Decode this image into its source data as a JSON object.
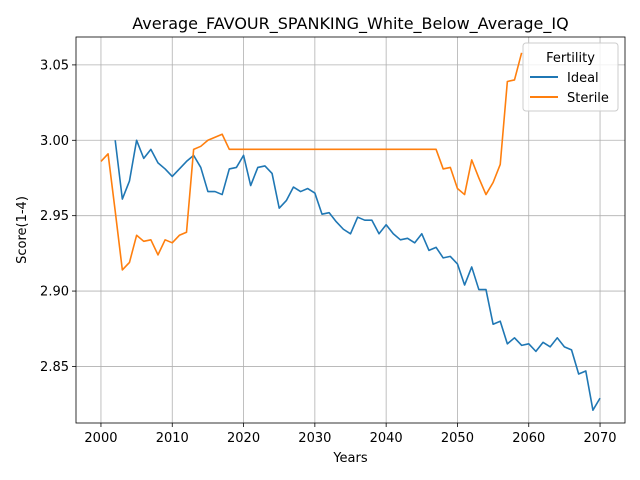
{
  "chart_data": {
    "type": "line",
    "title": "Average_FAVOUR_SPANKING_White_Below_Average_IQ",
    "xlabel": "Years",
    "ylabel": "Score(1-4)",
    "xlim": [
      1996.5,
      2073.5
    ],
    "ylim": [
      2.8125,
      3.0685
    ],
    "xticks": [
      2000,
      2010,
      2020,
      2030,
      2040,
      2050,
      2060,
      2070
    ],
    "yticks": [
      2.85,
      2.9,
      2.95,
      3.0,
      3.05
    ],
    "ytick_labels": [
      "2.85",
      "2.90",
      "2.95",
      "3.00",
      "3.05"
    ],
    "grid": true,
    "legend": {
      "title": "Fertility",
      "placement": "top-right"
    },
    "series": [
      {
        "name": "Ideal",
        "color": "#1f77b4",
        "x": [
          2002,
          2003,
          2004,
          2005,
          2006,
          2007,
          2008,
          2009,
          2010,
          2011,
          2012,
          2013,
          2014,
          2015,
          2016,
          2017,
          2018,
          2019,
          2020,
          2021,
          2022,
          2023,
          2024,
          2025,
          2026,
          2027,
          2028,
          2029,
          2030,
          2031,
          2032,
          2033,
          2034,
          2035,
          2036,
          2037,
          2038,
          2039,
          2040,
          2041,
          2042,
          2043,
          2044,
          2045,
          2046,
          2047,
          2048,
          2049,
          2050,
          2051,
          2052,
          2053,
          2054,
          2055,
          2056,
          2057,
          2058,
          2059,
          2060,
          2061,
          2062,
          2063,
          2064,
          2065,
          2066,
          2067,
          2068,
          2069,
          2070
        ],
        "values": [
          3.0,
          2.961,
          2.973,
          3.0,
          2.988,
          2.994,
          2.985,
          2.981,
          2.976,
          2.981,
          2.986,
          2.99,
          2.982,
          2.966,
          2.966,
          2.964,
          2.981,
          2.982,
          2.99,
          2.97,
          2.982,
          2.983,
          2.978,
          2.955,
          2.96,
          2.969,
          2.966,
          2.968,
          2.965,
          2.951,
          2.952,
          2.946,
          2.941,
          2.938,
          2.949,
          2.947,
          2.947,
          2.938,
          2.944,
          2.938,
          2.934,
          2.935,
          2.932,
          2.938,
          2.927,
          2.929,
          2.922,
          2.923,
          2.918,
          2.904,
          2.916,
          2.901,
          2.901,
          2.878,
          2.88,
          2.865,
          2.869,
          2.864,
          2.865,
          2.86,
          2.866,
          2.863,
          2.869,
          2.863,
          2.861,
          2.845,
          2.847,
          2.821,
          2.829
        ]
      },
      {
        "name": "Sterile",
        "color": "#ff7f0e",
        "x": [
          2000,
          2001,
          2002,
          2003,
          2004,
          2005,
          2006,
          2007,
          2008,
          2009,
          2010,
          2011,
          2012,
          2013,
          2014,
          2015,
          2016,
          2017,
          2018,
          2019,
          2020,
          2021,
          2022,
          2023,
          2024,
          2025,
          2026,
          2027,
          2028,
          2029,
          2030,
          2031,
          2032,
          2033,
          2034,
          2035,
          2036,
          2037,
          2038,
          2039,
          2040,
          2041,
          2042,
          2043,
          2044,
          2045,
          2046,
          2047,
          2048,
          2049,
          2050,
          2051,
          2052,
          2053,
          2054,
          2055,
          2056,
          2057,
          2058,
          2059
        ],
        "values": [
          2.986,
          2.991,
          2.953,
          2.914,
          2.919,
          2.937,
          2.933,
          2.934,
          2.924,
          2.934,
          2.932,
          2.937,
          2.939,
          2.994,
          2.996,
          3.0,
          3.002,
          3.004,
          2.994,
          2.994,
          2.994,
          2.994,
          2.994,
          2.994,
          2.994,
          2.994,
          2.994,
          2.994,
          2.994,
          2.994,
          2.994,
          2.994,
          2.994,
          2.994,
          2.994,
          2.994,
          2.994,
          2.994,
          2.994,
          2.994,
          2.994,
          2.994,
          2.994,
          2.994,
          2.994,
          2.994,
          2.994,
          2.994,
          2.981,
          2.982,
          2.968,
          2.964,
          2.987,
          2.975,
          2.964,
          2.972,
          2.984,
          3.039,
          3.04,
          3.058
        ]
      }
    ]
  }
}
